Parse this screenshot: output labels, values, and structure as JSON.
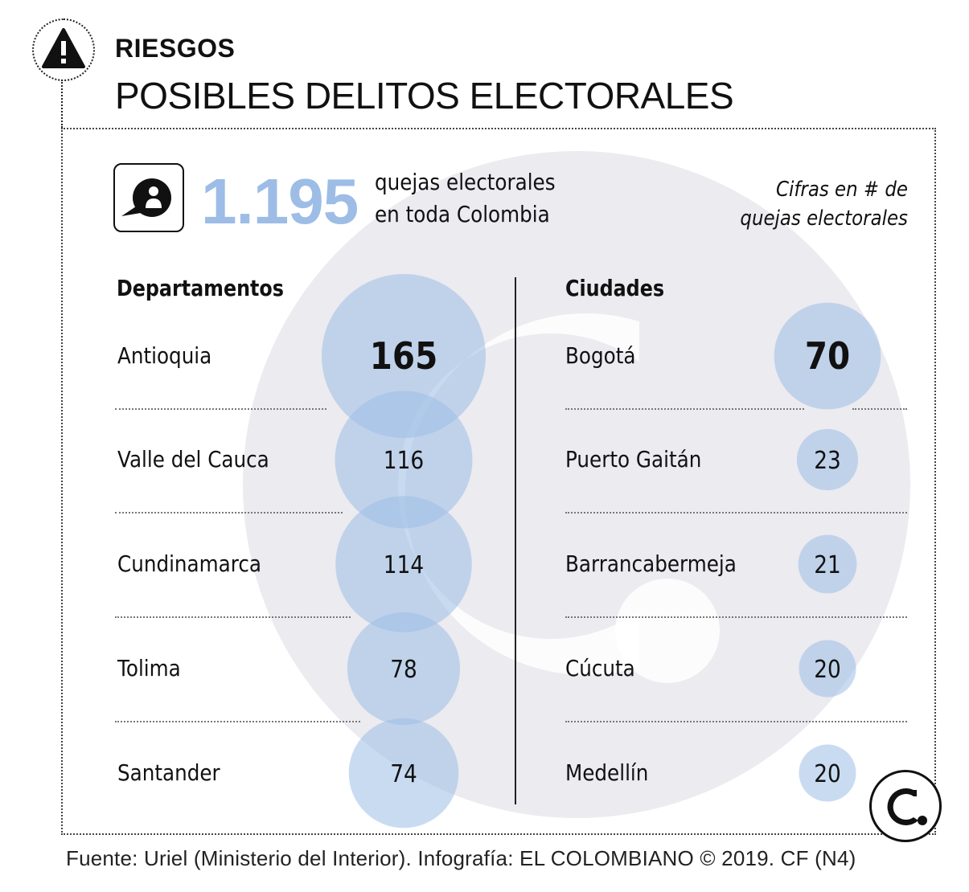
{
  "header": {
    "kicker": "RIESGOS",
    "title": "POSIBLES DELITOS ELECTORALES"
  },
  "summary": {
    "total": "1.195",
    "text_line1": "quejas electorales",
    "text_line2": "en toda Colombia",
    "note_line1": "Cifras en # de",
    "note_line2": "quejas electorales"
  },
  "colors": {
    "bubble": "#9dbde6",
    "watermark": "#ebebf0"
  },
  "chart_data": [
    {
      "type": "bubble-table",
      "title": "Departamentos",
      "categories": [
        "Antioquia",
        "Valle del Cauca",
        "Cundinamarca",
        "Tolima",
        "Santander"
      ],
      "values": [
        165,
        116,
        114,
        78,
        74
      ],
      "value_labels": [
        "165",
        "116",
        "114",
        "78",
        "74"
      ]
    },
    {
      "type": "bubble-table",
      "title": "Ciudades",
      "categories": [
        "Bogotá",
        "Puerto Gaitán",
        "Barrancabermeja",
        "Cúcuta",
        "Medellín"
      ],
      "values": [
        70,
        23,
        21,
        20,
        20
      ],
      "value_labels": [
        "70",
        "23",
        "21",
        "20",
        "20"
      ]
    }
  ],
  "footer": {
    "source": "Fuente: Uriel (Ministerio del Interior). Infografía: EL COLOMBIANO © 2019. CF (N4)"
  }
}
